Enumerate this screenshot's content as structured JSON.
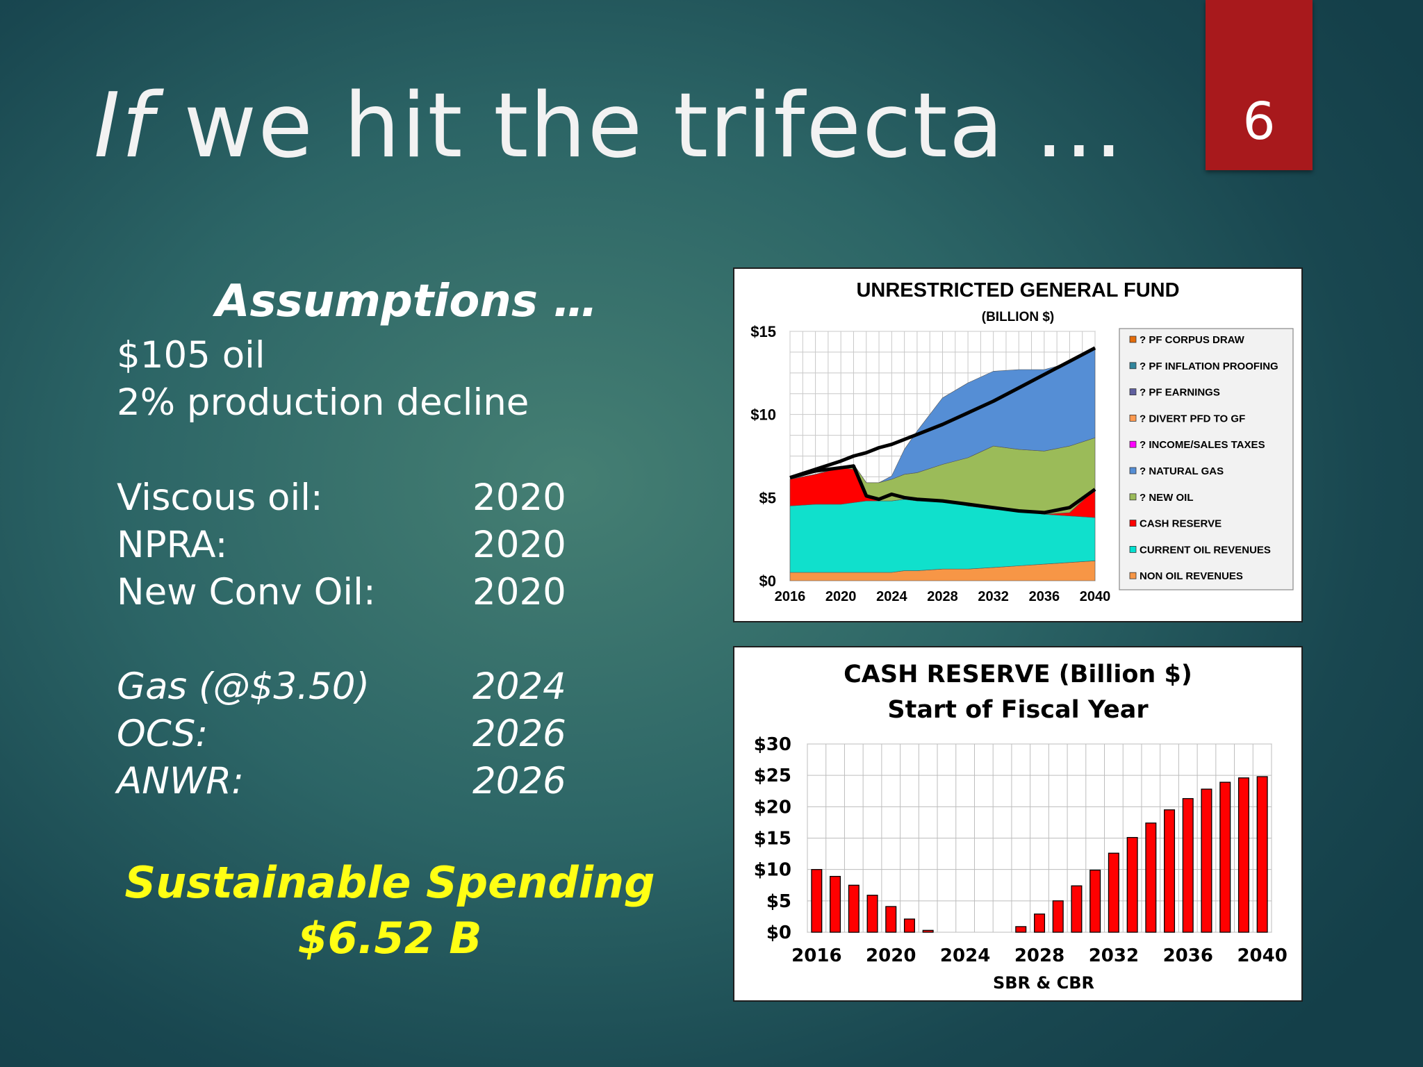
{
  "slide": {
    "title_italic": "If",
    "title_rest": "we hit the trifecta …",
    "number": "6"
  },
  "assumptions": {
    "heading": "Assumptions …",
    "lines": [
      "$105 oil",
      "2% production decline"
    ],
    "rows": [
      {
        "label": "Viscous oil:",
        "value": "2020",
        "italic": false
      },
      {
        "label": "NPRA:",
        "value": "2020",
        "italic": false
      },
      {
        "label": "New Conv Oil:",
        "value": "2020",
        "italic": false
      },
      {
        "label": "Gas (@$3.50)",
        "value": "2024",
        "italic": true
      },
      {
        "label": "OCS:",
        "value": "2026",
        "italic": true
      },
      {
        "label": "ANWR:",
        "value": "2026",
        "italic": true
      }
    ]
  },
  "sustainable": {
    "line1": "Sustainable Spending",
    "line2": "$6.52 B"
  },
  "colors": {
    "slide_number_bg": "#a8191c",
    "highlight_text": "#ffff14",
    "bar_fill": "#ff0000"
  },
  "chart_data": [
    {
      "type": "area",
      "title": "UNRESTRICTED GENERAL FUND",
      "subtitle": "(BILLION $)",
      "xlabel": "",
      "ylabel": "",
      "x": [
        2016,
        2018,
        2020,
        2021,
        2022,
        2023,
        2024,
        2025,
        2026,
        2028,
        2030,
        2032,
        2034,
        2036,
        2038,
        2040
      ],
      "xticks": [
        "2016",
        "2020",
        "2024",
        "2028",
        "2032",
        "2036",
        "2040"
      ],
      "yticks": [
        "$0",
        "$5",
        "$10",
        "$15"
      ],
      "xlim": [
        2016,
        2040
      ],
      "ylim": [
        0,
        15
      ],
      "grid": true,
      "legend_position": "right",
      "legend": [
        {
          "label": "? PF CORPUS DRAW",
          "color": "#e46c0a"
        },
        {
          "label": "? PF INFLATION PROOFING",
          "color": "#31859c"
        },
        {
          "label": "? PF EARNINGS",
          "color": "#5f5f9f"
        },
        {
          "label": "? DIVERT PFD TO GF",
          "color": "#ff9a50"
        },
        {
          "label": "? INCOME/SALES TAXES",
          "color": "#ff00ff"
        },
        {
          "label": "? NATURAL GAS",
          "color": "#558ed5"
        },
        {
          "label": "? NEW OIL",
          "color": "#9bbb59"
        },
        {
          "label": "CASH RESERVE",
          "color": "#ff0000"
        },
        {
          "label": "CURRENT OIL REVENUES",
          "color": "#00e0d0"
        },
        {
          "label": "NON OIL REVENUES",
          "color": "#f79646"
        }
      ],
      "series": [
        {
          "name": "NON OIL REVENUES",
          "color": "#f79646",
          "values": [
            0.5,
            0.5,
            0.5,
            0.5,
            0.5,
            0.5,
            0.5,
            0.6,
            0.6,
            0.7,
            0.7,
            0.8,
            0.9,
            1.0,
            1.1,
            1.2
          ]
        },
        {
          "name": "CURRENT OIL REVENUES",
          "color": "#10e0cc",
          "values": [
            4.0,
            4.1,
            4.1,
            4.2,
            4.3,
            4.3,
            4.3,
            4.3,
            4.2,
            4.1,
            3.8,
            3.5,
            3.3,
            3.0,
            2.8,
            2.6
          ]
        },
        {
          "name": "CASH RESERVE",
          "color": "#ff0000",
          "values": [
            1.6,
            1.8,
            2.2,
            2.0,
            0.3,
            0.0,
            0.0,
            0.0,
            0.0,
            0.0,
            0.0,
            0.0,
            0.0,
            0.0,
            0.2,
            1.7
          ]
        },
        {
          "name": "? NEW OIL",
          "color": "#9bbb59",
          "values": [
            0.0,
            0.0,
            0.0,
            0.3,
            0.8,
            1.1,
            1.3,
            1.5,
            1.7,
            2.2,
            2.9,
            3.8,
            3.7,
            3.8,
            4.0,
            3.1
          ]
        },
        {
          "name": "? NATURAL GAS",
          "color": "#558ed5",
          "values": [
            0.0,
            0.0,
            0.0,
            0.0,
            0.0,
            0.0,
            0.2,
            1.5,
            2.5,
            4.0,
            4.5,
            4.5,
            4.8,
            4.9,
            5.0,
            5.4
          ]
        }
      ],
      "total_line": {
        "name": "",
        "color": "#000000",
        "values": [
          6.2,
          6.7,
          7.2,
          7.5,
          7.7,
          8.0,
          8.2,
          8.5,
          8.8,
          9.4,
          10.1,
          10.8,
          11.6,
          12.4,
          13.2,
          14.0
        ]
      },
      "reserve_boundary_line": {
        "name": "",
        "color": "#000000",
        "values": [
          6.2,
          6.6,
          6.8,
          6.9,
          5.1,
          4.9,
          5.2,
          5.0,
          4.9,
          4.8,
          4.6,
          4.4,
          4.2,
          4.1,
          4.4,
          5.5
        ]
      }
    },
    {
      "type": "bar",
      "title": "CASH RESERVE (Billion $)",
      "subtitle": "Start of  Fiscal Year",
      "xlabel": "SBR & CBR",
      "ylabel": "",
      "categories": [
        "2016",
        "2017",
        "2018",
        "2019",
        "2020",
        "2021",
        "2022",
        "2023",
        "2024",
        "2025",
        "2026",
        "2027",
        "2028",
        "2029",
        "2030",
        "2031",
        "2032",
        "2033",
        "2034",
        "2035",
        "2036",
        "2037",
        "2038",
        "2039",
        "2040"
      ],
      "xticks": [
        "2016",
        "2020",
        "2024",
        "2028",
        "2032",
        "2036",
        "2040"
      ],
      "yticks": [
        "$0",
        "$5",
        "$10",
        "$15",
        "$20",
        "$25",
        "$30"
      ],
      "values": [
        10.0,
        8.9,
        7.5,
        5.9,
        4.1,
        2.1,
        0.3,
        0.0,
        0.0,
        0.0,
        0.0,
        0.9,
        2.9,
        5.0,
        7.4,
        9.9,
        12.6,
        15.1,
        17.4,
        19.5,
        21.3,
        22.8,
        23.9,
        24.6,
        24.8
      ],
      "ylim": [
        0,
        30
      ],
      "grid": true,
      "legend_position": "none"
    }
  ]
}
